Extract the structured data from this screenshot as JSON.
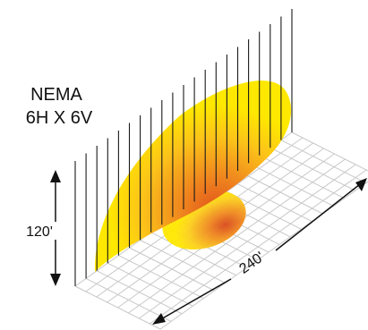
{
  "rating": {
    "line1": "NEMA",
    "line2": "6H X 6V"
  },
  "dimensions": {
    "height_label": "120'",
    "length_label": "240'"
  },
  "colors": {
    "outer": "#ffe800",
    "mid": "#f7a21b",
    "core": "#e2521c",
    "grid": "#1a1a1a",
    "floor_grid": "#c8c8c8"
  }
}
